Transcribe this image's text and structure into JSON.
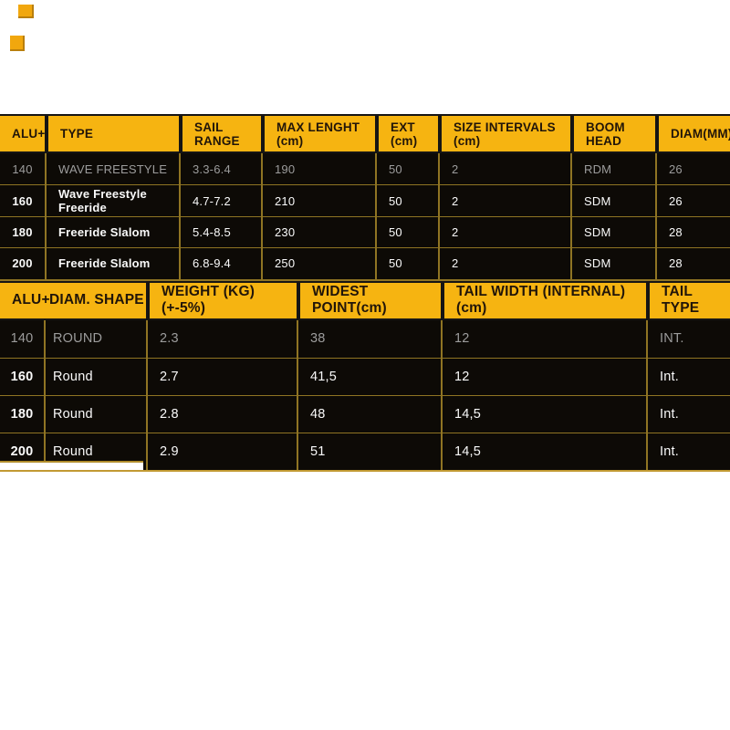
{
  "colors": {
    "page_bg": "#FFFFFF",
    "header_bg": "#F6B411",
    "header_text": "#211509",
    "row_bg": "#0D0A06",
    "grid_gold": "#8F7423",
    "bottom_border_gold": "#C29A33",
    "dim_row_text": "#9C9C9C",
    "bright_row_text": "#FAFAFA",
    "accent_square": "#F1A70E"
  },
  "table1": {
    "columns": [
      "ALU+",
      "TYPE",
      "SAIL RANGE",
      "MAX LENGHT (cm)",
      "EXT (cm)",
      "SIZE INTERVALS (cm)",
      "BOOM HEAD",
      "DIAM(MM)"
    ],
    "rows": [
      [
        "140",
        "WAVE FREESTYLE",
        "3.3-6.4",
        "190",
        "50",
        "2",
        "RDM",
        "26"
      ],
      [
        "160",
        "Wave Freestyle Freeride",
        "4.7-7.2",
        "210",
        "50",
        "2",
        "SDM",
        "26"
      ],
      [
        "180",
        "Freeride Slalom",
        "5.4-8.5",
        "230",
        "50",
        "2",
        "SDM",
        "28"
      ],
      [
        "200",
        "Freeride Slalom",
        "6.8-9.4",
        "250",
        "50",
        "2",
        "SDM",
        "28"
      ]
    ]
  },
  "table2": {
    "columns": [
      "ALU+",
      "DIAM. SHAPE",
      "WEIGHT (KG) (+-5%)",
      "WIDEST POINT(cm)",
      "TAIL WIDTH (INTERNAL) (cm)",
      "TAIL TYPE"
    ],
    "rows": [
      [
        "140",
        "ROUND",
        "2.3",
        "38",
        "12",
        "INT."
      ],
      [
        "160",
        "Round",
        "2.7",
        "41,5",
        "12",
        "Int."
      ],
      [
        "180",
        "Round",
        "2.8",
        "48",
        "14,5",
        "Int."
      ],
      [
        "200",
        "Round",
        "2.9",
        "51",
        "14,5",
        "Int."
      ]
    ]
  }
}
